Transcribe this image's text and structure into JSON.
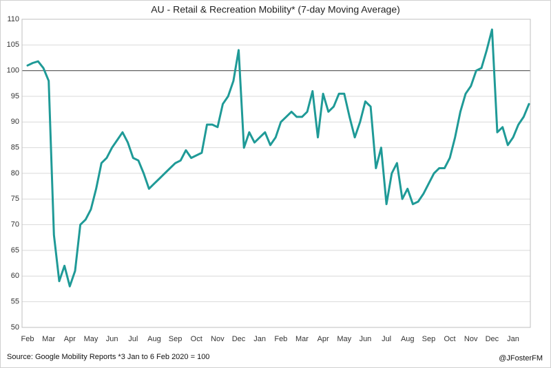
{
  "chart_data": {
    "type": "line",
    "title": "AU - Retail & Recreation Mobility* (7-day Moving Average)",
    "source": "Source: Google Mobility Reports *3 Jan to 6 Feb 2020 = 100",
    "credit": "@JFosterFM",
    "categories": [
      "Feb",
      null,
      null,
      null,
      "Mar",
      null,
      null,
      null,
      "Apr",
      null,
      null,
      null,
      "May",
      null,
      null,
      null,
      "Jun",
      null,
      null,
      null,
      "Jul",
      null,
      null,
      null,
      "Aug",
      null,
      null,
      null,
      "Sep",
      null,
      null,
      null,
      "Oct",
      null,
      null,
      null,
      "Nov",
      null,
      null,
      null,
      "Dec",
      null,
      null,
      null,
      "Jan",
      null,
      null,
      null,
      "Feb",
      null,
      null,
      null,
      "Mar",
      null,
      null,
      null,
      "Apr",
      null,
      null,
      null,
      "May",
      null,
      null,
      null,
      "Jun",
      null,
      null,
      null,
      "Jul",
      null,
      null,
      null,
      "Aug",
      null,
      null,
      null,
      "Sep",
      null,
      null,
      null,
      "Oct",
      null,
      null,
      null,
      "Nov",
      null,
      null,
      null,
      "Dec",
      null,
      null,
      null,
      "Jan",
      null,
      null,
      null
    ],
    "series": [
      {
        "name": "Retail & Recreation",
        "color": "#1f9a97",
        "values": [
          101,
          101.5,
          101.8,
          100.5,
          98,
          68,
          59,
          62,
          58,
          61,
          70,
          71,
          73,
          77,
          82,
          83,
          85,
          86.5,
          88,
          86,
          83,
          82.5,
          80,
          77,
          78,
          79,
          80,
          81,
          82,
          82.5,
          84.5,
          83,
          83.5,
          84,
          89.5,
          89.5,
          89,
          93.5,
          95,
          98,
          104,
          85,
          88,
          86,
          87,
          88,
          85.5,
          87,
          90,
          91,
          92,
          91,
          91,
          92,
          96,
          87,
          95.5,
          92,
          93,
          95.5,
          95.5,
          91,
          87,
          90,
          94,
          93,
          81,
          85,
          74,
          80,
          82,
          75,
          77,
          74,
          74.5,
          76,
          78,
          80,
          81,
          81,
          83,
          87,
          92,
          95.5,
          97,
          100,
          100.5,
          104,
          108,
          88,
          89,
          85.5,
          87,
          89.5,
          91,
          93.5
        ]
      }
    ],
    "ylim": [
      50,
      110
    ],
    "yticks": [
      50,
      55,
      60,
      65,
      70,
      75,
      80,
      85,
      90,
      95,
      100,
      105,
      110
    ],
    "grid": true,
    "reference_line": 100
  }
}
